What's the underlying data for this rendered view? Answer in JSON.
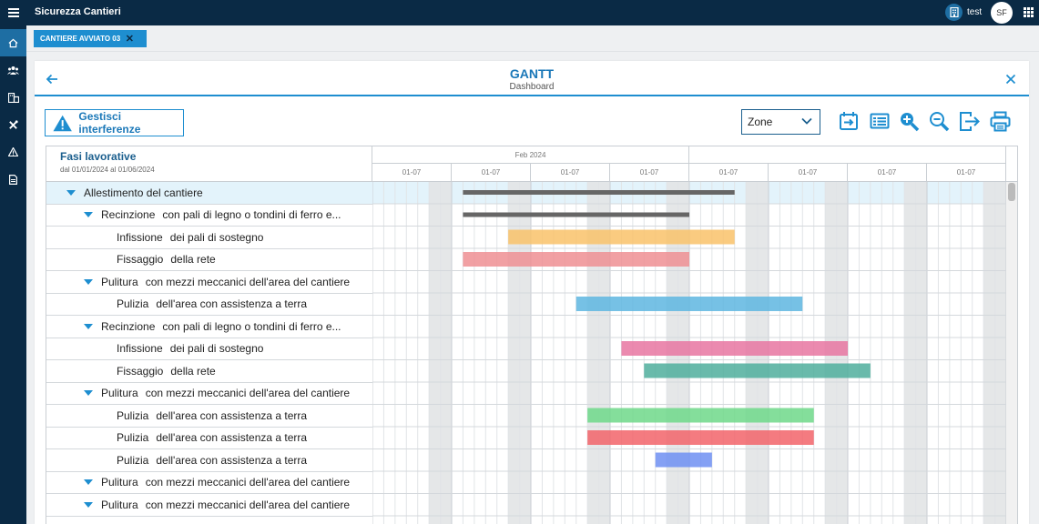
{
  "app": {
    "title": "Sicurezza Cantieri",
    "user": "test",
    "avatar_initials": "SF"
  },
  "sidebar": {
    "items": [
      "home-icon",
      "users-icon",
      "buildings-icon",
      "tools-icon",
      "warning-icon",
      "document-icon"
    ],
    "active": 0
  },
  "tab": {
    "label": "CANTIERE AVVIATO 03",
    "close": "✕"
  },
  "page": {
    "title": "GANTT",
    "subtitle": "Dashboard"
  },
  "toolbar": {
    "interference_button": "Gestisci interferenze",
    "zone_select": "Zone",
    "tools": [
      "calendar-forward-icon",
      "list-view-icon",
      "zoom-in-icon",
      "zoom-out-icon",
      "export-icon",
      "print-icon"
    ]
  },
  "gantt": {
    "left_header": {
      "title": "Fasi lavorative",
      "range": "dal 01/01/2024 al 01/06/2024"
    },
    "month_label": "Feb 2024",
    "week_labels": [
      "01-07",
      "01-07",
      "01-07",
      "01-07",
      "01-07",
      "01-07",
      "01-07",
      "01-07"
    ],
    "rows": [
      {
        "name": "Allestimento del cantiere",
        "desc": "",
        "level": 0,
        "expandable": true,
        "selected": true
      },
      {
        "name": "Recinzione",
        "desc": "con pali di legno o tondini di ferro e...",
        "level": 1,
        "expandable": true
      },
      {
        "name": "Infissione",
        "desc": "dei pali di sostegno",
        "level": 2,
        "expandable": false
      },
      {
        "name": "Fissaggio",
        "desc": "della rete",
        "level": 2,
        "expandable": false
      },
      {
        "name": "Pulitura",
        "desc": "con mezzi meccanici dell'area del cantiere",
        "level": 1,
        "expandable": true
      },
      {
        "name": "Pulizia",
        "desc": "dell'area con assistenza a terra",
        "level": 2,
        "expandable": false
      },
      {
        "name": "Recinzione",
        "desc": "con pali di legno o tondini di ferro e...",
        "level": 1,
        "expandable": true
      },
      {
        "name": "Infissione",
        "desc": "dei pali di sostegno",
        "level": 2,
        "expandable": false
      },
      {
        "name": "Fissaggio",
        "desc": "della rete",
        "level": 2,
        "expandable": false
      },
      {
        "name": "Pulitura",
        "desc": "con mezzi meccanici dell'area del cantiere",
        "level": 1,
        "expandable": true
      },
      {
        "name": "Pulizia",
        "desc": "dell'area con assistenza a terra",
        "level": 2,
        "expandable": false
      },
      {
        "name": "Pulizia",
        "desc": "dell'area con assistenza a terra",
        "level": 2,
        "expandable": false
      },
      {
        "name": "Pulizia",
        "desc": "dell'area con assistenza a terra",
        "level": 2,
        "expandable": false
      },
      {
        "name": "Pulitura",
        "desc": "con mezzi meccanici dell'area del cantiere",
        "level": 1,
        "expandable": true
      },
      {
        "name": "Pulitura",
        "desc": "con mezzi meccanici dell'area del cantiere",
        "level": 1,
        "expandable": true
      }
    ],
    "bars": [
      {
        "row": 0,
        "start_day": 8,
        "end_day": 32,
        "color": "#666666",
        "kind": "summary"
      },
      {
        "row": 1,
        "start_day": 8,
        "end_day": 28,
        "color": "#666666",
        "kind": "summary"
      },
      {
        "row": 2,
        "start_day": 12,
        "end_day": 32,
        "color": "#f9c26a",
        "kind": "task"
      },
      {
        "row": 3,
        "start_day": 8,
        "end_day": 28,
        "color": "#ef8f93",
        "kind": "task"
      },
      {
        "row": 5,
        "start_day": 18,
        "end_day": 38,
        "color": "#5eb6e0",
        "kind": "task"
      },
      {
        "row": 7,
        "start_day": 22,
        "end_day": 42,
        "color": "#e875a1",
        "kind": "task"
      },
      {
        "row": 8,
        "start_day": 24,
        "end_day": 44,
        "color": "#4fae9c",
        "kind": "task"
      },
      {
        "row": 10,
        "start_day": 19,
        "end_day": 39,
        "color": "#6fd88a",
        "kind": "task"
      },
      {
        "row": 11,
        "start_day": 19,
        "end_day": 39,
        "color": "#f2646a",
        "kind": "task"
      },
      {
        "row": 12,
        "start_day": 25,
        "end_day": 30,
        "color": "#6e8ff2",
        "kind": "task"
      }
    ],
    "colors": {
      "accent": "#1e8ed0",
      "nav": "#0a2a45",
      "weekend": "#e2e4e6",
      "selected_row": "#e3f3fb"
    }
  }
}
